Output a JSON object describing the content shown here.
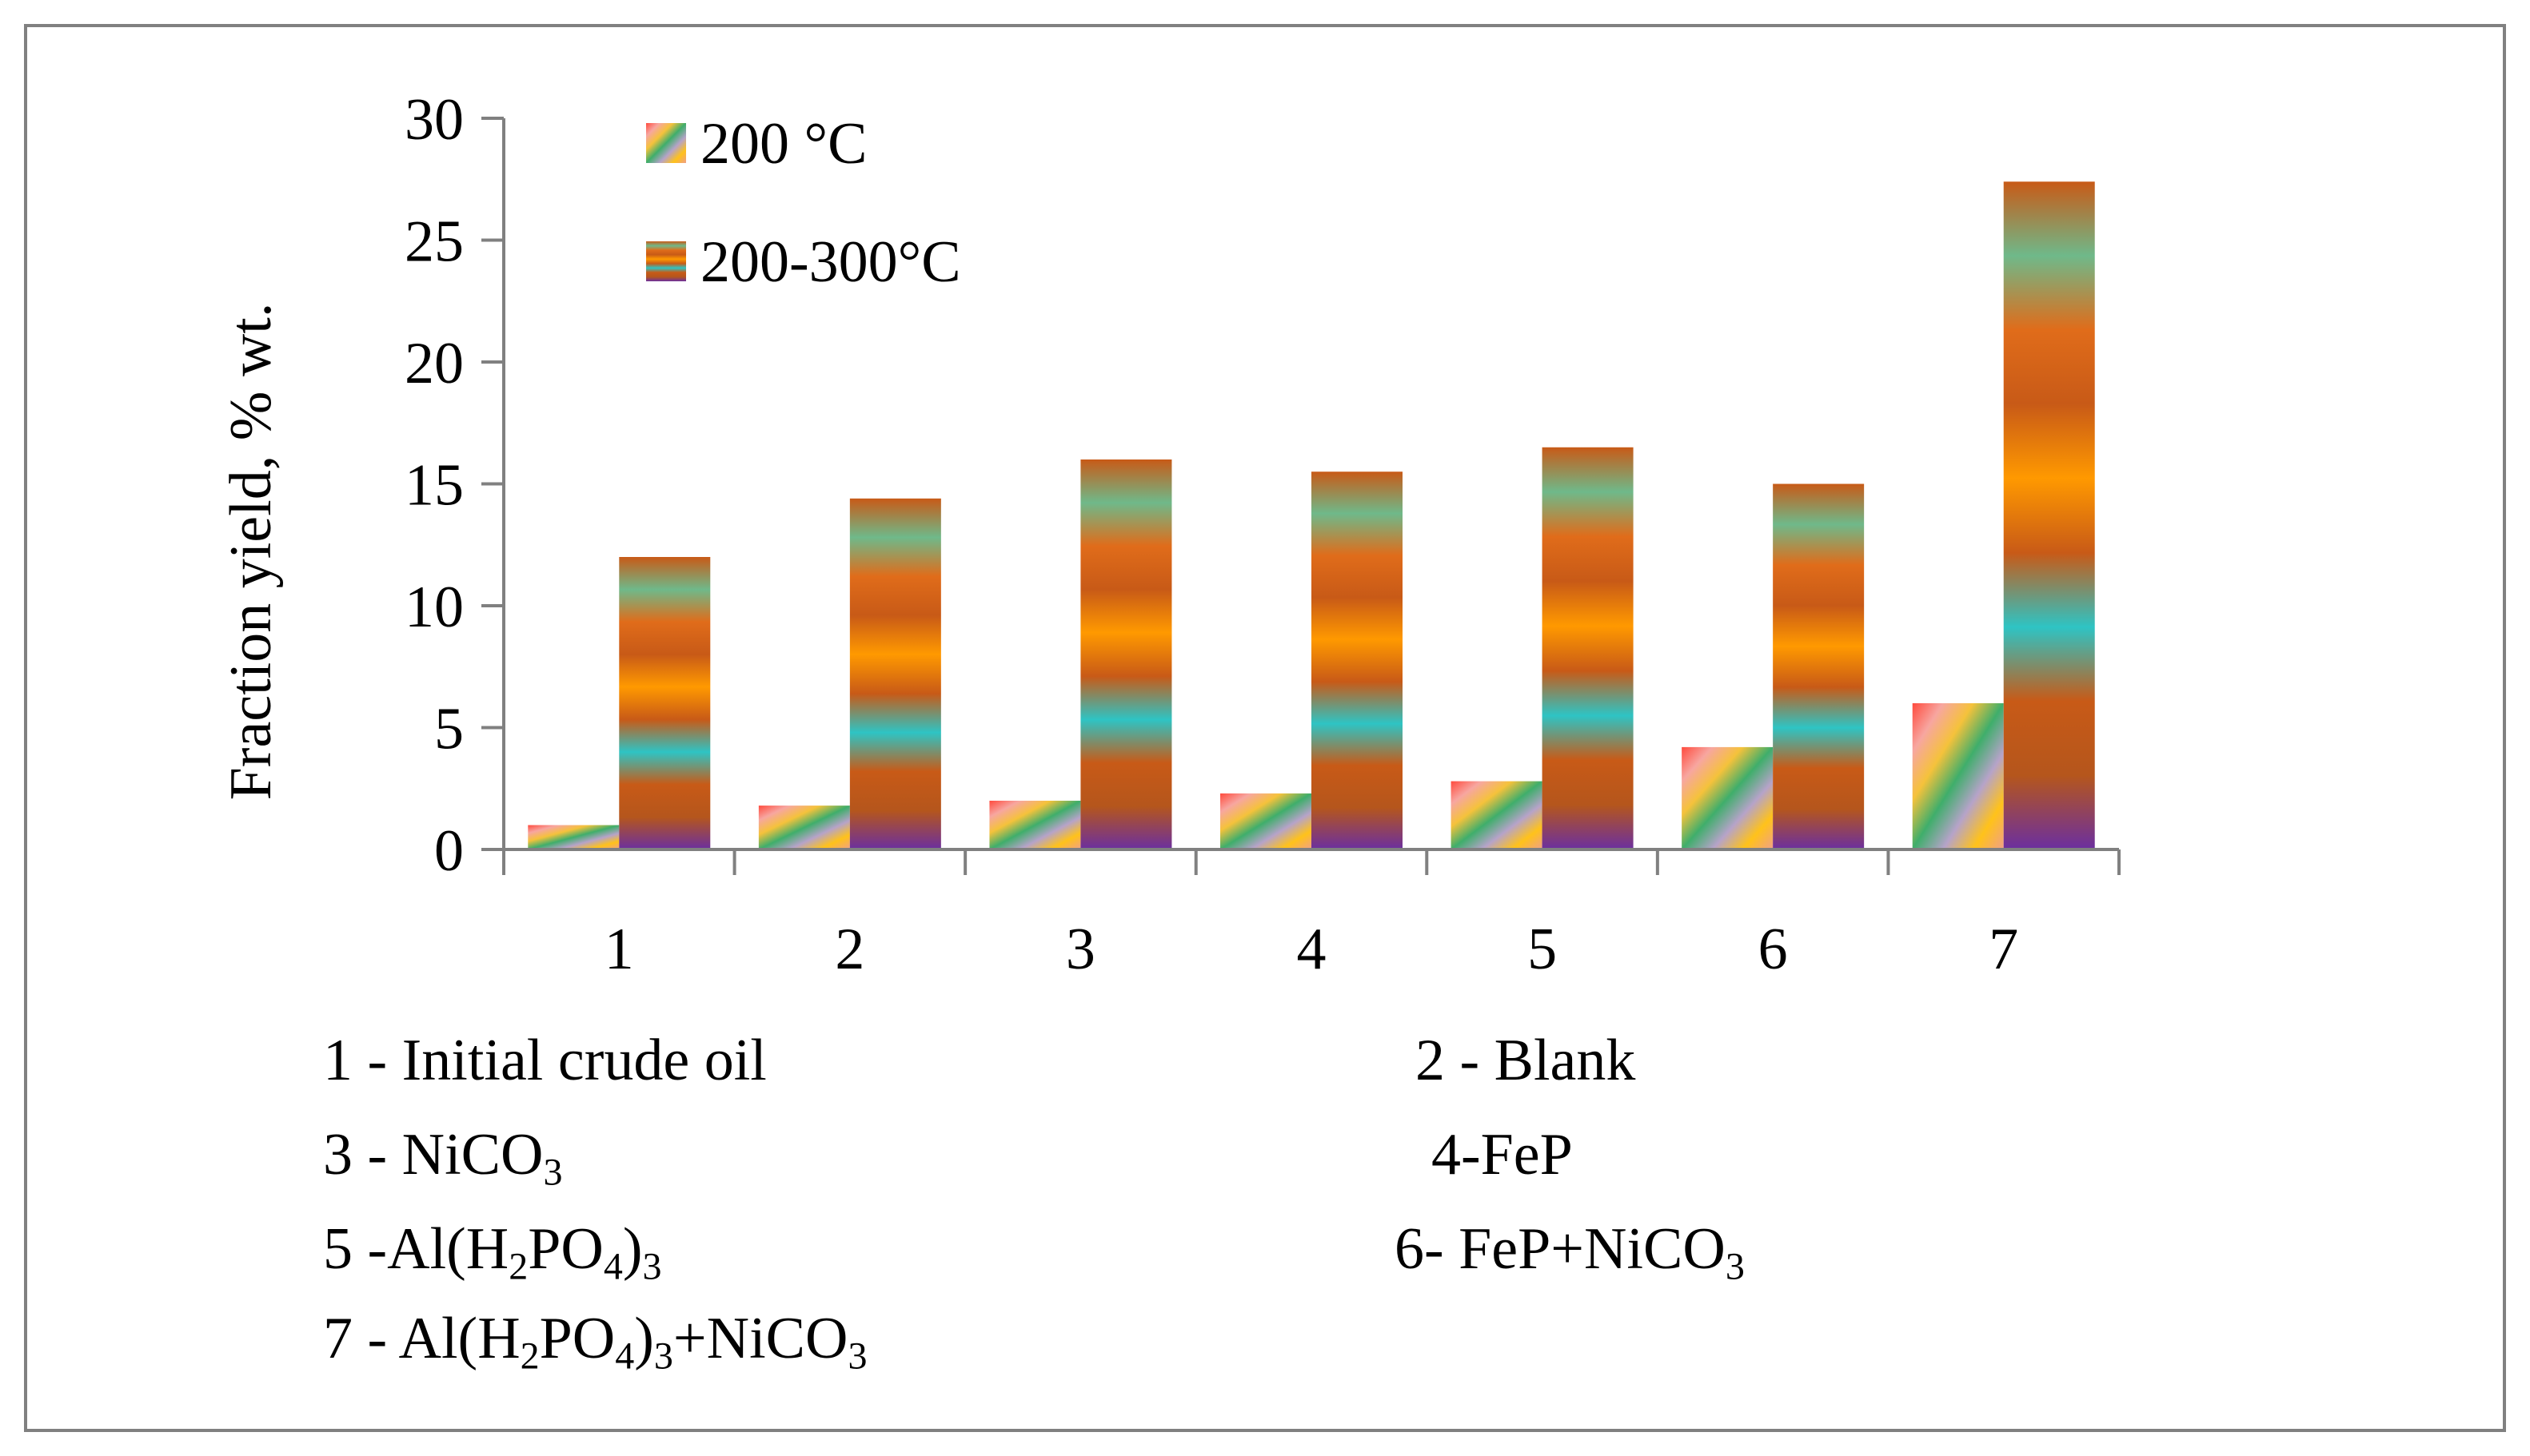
{
  "chart_data": {
    "type": "bar",
    "title": "",
    "xlabel": "",
    "ylabel": "Fraction  yield, % wt.",
    "ylim": [
      0,
      30
    ],
    "yticks": [
      0,
      5,
      10,
      15,
      20,
      25,
      30
    ],
    "categories": [
      "1",
      "2",
      "3",
      "4",
      "5",
      "6",
      "7"
    ],
    "series": [
      {
        "name": "200 °C",
        "values": [
          1.0,
          1.8,
          2.0,
          2.3,
          2.8,
          4.2,
          6.0
        ]
      },
      {
        "name": "200-300°C",
        "values": [
          12.0,
          14.4,
          16.0,
          15.5,
          16.5,
          15.0,
          27.4
        ]
      }
    ],
    "legend_position": "top-left",
    "grid": false
  },
  "colors": {
    "frame": "#808080",
    "axis": "#808080",
    "series1_stops": [
      "#ff4a3d",
      "#f7a6a0",
      "#f5c23b",
      "#3fae6b",
      "#b6a3c9",
      "#ffc21a",
      "#f0a088"
    ],
    "series2_stops": [
      "#6b2fa0",
      "#b5561c",
      "#c85a17",
      "#2ec4c4",
      "#c85a17",
      "#ff9900",
      "#c85a17",
      "#e06c1a",
      "#6fb98a",
      "#c85a17"
    ]
  },
  "captions": {
    "c1": "1 - Initial crude oil",
    "c2": "2 - Blank",
    "c3_prefix": "3 - NiCO",
    "c3_sub": "3",
    "c4": "4-FeP",
    "c5_prefix": "5 -Al(H",
    "c5_sub1": "2",
    "c5_mid": "PO",
    "c5_sub2": "4",
    "c5_close": ")",
    "c5_sub3": "3",
    "c6_prefix": "6- FeP+NiCO",
    "c6_sub": "3",
    "c7_prefix": "7 - Al(H",
    "c7_sub1": "2",
    "c7_mid": "PO",
    "c7_sub2": "4",
    "c7_close": ")",
    "c7_sub3": "3",
    "c7_suffix": "+NiCO",
    "c7_sub4": "3"
  }
}
